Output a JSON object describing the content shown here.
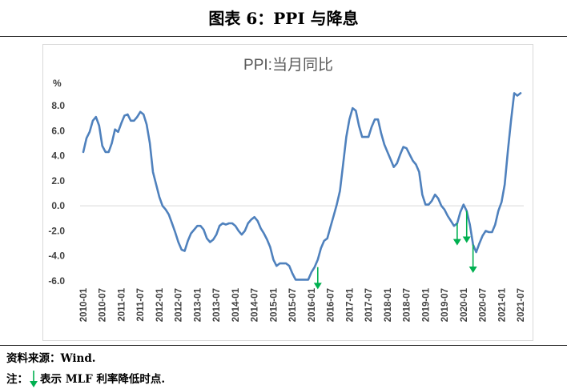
{
  "figure": {
    "title": "图表 6：PPI 与降息"
  },
  "chart_data": {
    "type": "line",
    "title": "PPI:当月同比",
    "ylabel": "%",
    "xlabel": "",
    "ylim": [
      -6.0,
      8.0
    ],
    "yticks": [
      "8.0",
      "6.0",
      "4.0",
      "2.0",
      "0.0",
      "-2.0",
      "-4.0",
      "-6.0"
    ],
    "ytick_values": [
      8,
      6,
      4,
      2,
      0,
      -2,
      -4,
      -6
    ],
    "xticks": [
      "2010-01",
      "2010-07",
      "2011-01",
      "2011-07",
      "2012-01",
      "2012-07",
      "2013-01",
      "2013-07",
      "2014-01",
      "2014-07",
      "2015-01",
      "2015-07",
      "2016-01",
      "2016-07",
      "2017-01",
      "2017-07",
      "2018-01",
      "2018-07",
      "2019-01",
      "2019-07",
      "2020-01",
      "2020-07",
      "2021-01",
      "2021-07"
    ],
    "grid": false,
    "legend": "none",
    "line_color": "#4f81bd",
    "marker_color": "#00b050",
    "series": [
      {
        "values": [
          4.3,
          5.4,
          5.9,
          6.8,
          7.1,
          6.4,
          4.8,
          4.3,
          4.3,
          5.0,
          6.1,
          5.9,
          6.6,
          7.2,
          7.3,
          6.8,
          6.8,
          7.1,
          7.5,
          7.3,
          6.5,
          5.0,
          2.7,
          1.7,
          0.7,
          0.0,
          -0.3,
          -0.7,
          -1.4,
          -2.1,
          -2.9,
          -3.5,
          -3.6,
          -2.8,
          -2.2,
          -1.9,
          -1.6,
          -1.6,
          -1.9,
          -2.6,
          -2.9,
          -2.7,
          -2.3,
          -1.6,
          -1.4,
          -1.5,
          -1.4,
          -1.4,
          -1.6,
          -2.0,
          -2.3,
          -2.0,
          -1.4,
          -1.1,
          -0.9,
          -1.2,
          -1.8,
          -2.2,
          -2.7,
          -3.3,
          -4.3,
          -4.8,
          -4.6,
          -4.6,
          -4.6,
          -4.8,
          -5.4,
          -5.9,
          -5.9,
          -5.9,
          -5.9,
          -5.9,
          -5.3,
          -4.9,
          -4.3,
          -3.4,
          -2.8,
          -2.6,
          -1.7,
          -0.8,
          0.1,
          1.2,
          3.3,
          5.5,
          6.9,
          7.8,
          7.6,
          6.4,
          5.5,
          5.5,
          5.5,
          6.3,
          6.9,
          6.9,
          5.8,
          4.9,
          4.3,
          3.7,
          3.1,
          3.4,
          4.1,
          4.7,
          4.6,
          4.1,
          3.6,
          3.3,
          2.7,
          0.9,
          0.1,
          0.1,
          0.4,
          0.9,
          0.6,
          0.0,
          -0.3,
          -0.8,
          -1.2,
          -1.6,
          -1.4,
          -0.5,
          0.1,
          -0.4,
          -1.5,
          -3.1,
          -3.7,
          -3.0,
          -2.4,
          -2.0,
          -2.1,
          -2.1,
          -1.5,
          -0.4,
          0.3,
          1.7,
          4.4,
          6.8,
          9.0,
          8.8,
          9.0
        ]
      }
    ],
    "rate_cut_markers": [
      {
        "date": "2016-03",
        "from": -4.9,
        "to": -6.6
      },
      {
        "date": "2019-11",
        "from": -1.4,
        "to": -3.1
      },
      {
        "date": "2020-02",
        "from": -0.4,
        "to": -2.9
      },
      {
        "date": "2020-04",
        "from": -3.1,
        "to": -5.3
      }
    ]
  },
  "footer": {
    "source": "资料来源：Wind.",
    "note_prefix": "注：",
    "note_text": "表示 MLF 利率降低时点."
  }
}
